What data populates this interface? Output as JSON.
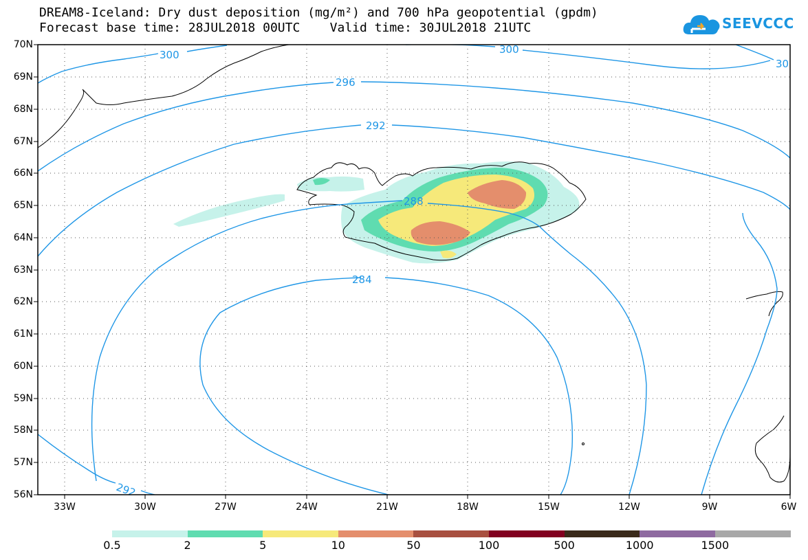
{
  "title_line1": "DREAM8-Iceland: Dry dust deposition (mg/m²) and 700 hPa geopotential (gpdm)",
  "title_line2": "Forecast base time: 28JUL2018 00UTC    Valid time: 30JUL2018 21UTC",
  "logo": {
    "text": "SEEVCCC",
    "icon": "cloud-icon",
    "color": "#1a95e0"
  },
  "map": {
    "lat_labels": [
      "70N",
      "69N",
      "68N",
      "67N",
      "66N",
      "65N",
      "64N",
      "63N",
      "62N",
      "61N",
      "60N",
      "59N",
      "58N",
      "57N",
      "56N"
    ],
    "lon_labels": [
      "33W",
      "30W",
      "27W",
      "24W",
      "21W",
      "18W",
      "15W",
      "12W",
      "9W",
      "6W"
    ],
    "grid": "dotted",
    "contour_color": "#1e96e6",
    "contour_labels": [
      "300",
      "300",
      "30",
      "296",
      "292",
      "288",
      "284",
      "292"
    ]
  },
  "colorbar": {
    "labels": [
      "0.5",
      "2",
      "5",
      "10",
      "50",
      "100",
      "500",
      "1000",
      "1500"
    ],
    "colors": [
      "#c6f2ea",
      "#5fdcb0",
      "#f6e97a",
      "#e48e6c",
      "#a85040",
      "#820020",
      "#3a2a1a",
      "#8e6aa0",
      "#a8a8a8"
    ]
  }
}
